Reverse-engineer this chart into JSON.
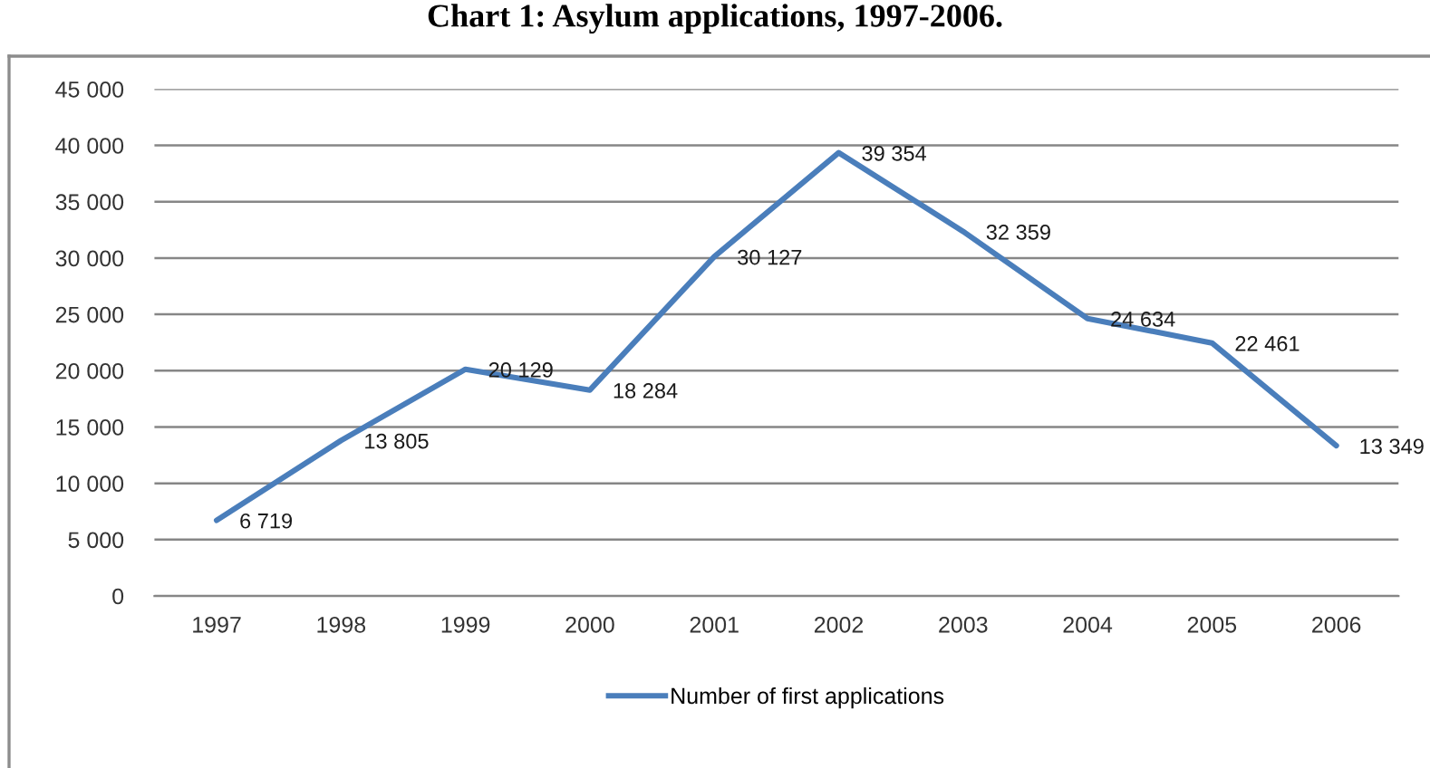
{
  "chart_data": {
    "type": "line",
    "title": "Chart 1: Asylum applications, 1997-2006.",
    "categories": [
      "1997",
      "1998",
      "1999",
      "2000",
      "2001",
      "2002",
      "2003",
      "2004",
      "2005",
      "2006"
    ],
    "series": [
      {
        "name": "Number of first applications",
        "color": "#4a7ebb",
        "values": [
          6719,
          13805,
          20129,
          18284,
          30127,
          39354,
          32359,
          24634,
          22461,
          13349
        ],
        "value_labels": [
          "6 719",
          "13 805",
          "20 129",
          "18 284",
          "30 127",
          "39 354",
          "32 359",
          "24 634",
          "22 461",
          "13 349"
        ]
      }
    ],
    "ylim": [
      0,
      45000
    ],
    "yticks": [
      {
        "value": 0,
        "label": "0"
      },
      {
        "value": 5000,
        "label": "5 000"
      },
      {
        "value": 10000,
        "label": "10 000"
      },
      {
        "value": 15000,
        "label": "15 000"
      },
      {
        "value": 20000,
        "label": "20 000"
      },
      {
        "value": 25000,
        "label": "25 000"
      },
      {
        "value": 30000,
        "label": "30 000"
      },
      {
        "value": 35000,
        "label": "35 000"
      },
      {
        "value": 40000,
        "label": "40 000"
      },
      {
        "value": 45000,
        "label": "45 000"
      }
    ],
    "grid": "y",
    "legend": "bottom",
    "marker": "none",
    "line_style": "solid"
  }
}
